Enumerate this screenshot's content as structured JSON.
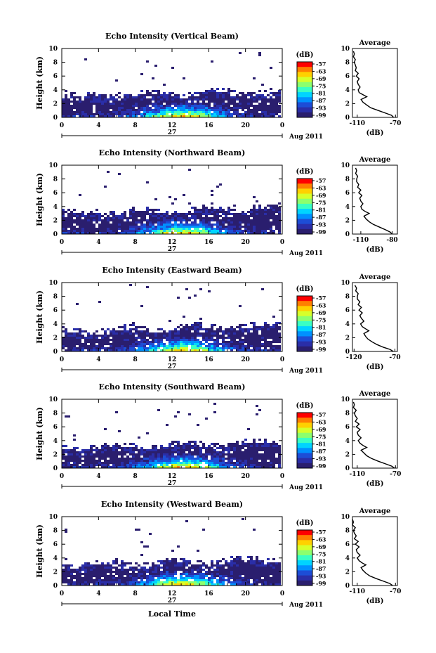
{
  "page": {
    "date_day": "27",
    "date_label": "Aug 2011",
    "x_title": "Local Time"
  },
  "colorbar": {
    "unit": "(dB)",
    "ticks": [
      "-57",
      "-63",
      "-69",
      "-75",
      "-81",
      "-87",
      "-93",
      "-99"
    ],
    "colors": [
      "#ff0000",
      "#ff7f00",
      "#ffd100",
      "#d7ff2a",
      "#8cff6e",
      "#39ffc4",
      "#00d4ff",
      "#0091ff",
      "#1d4dd6",
      "#2a2ea8",
      "#2a1e6e"
    ]
  },
  "chart_data": [
    {
      "type": "heatmap",
      "title": "Echo Intensity (Vertical Beam)",
      "ylabel": "Height (km)",
      "xticks": [
        "0",
        "4",
        "8",
        "12",
        "16",
        "20",
        "0"
      ],
      "yticks": [
        "0",
        "2",
        "4",
        "6",
        "8",
        "10"
      ],
      "xlim": [
        0,
        24
      ],
      "ylim": [
        0,
        10
      ],
      "profile": {
        "title": "Average",
        "xlabel": "(dB)",
        "xticks": [
          "-110",
          "-70"
        ],
        "xlim": [
          -115,
          -68
        ],
        "heights": [
          0,
          0.3,
          0.6,
          1,
          1.4,
          1.8,
          2.2,
          2.6,
          3,
          3.3,
          3.6,
          4,
          4.4,
          4.8,
          5.2,
          5.6,
          6,
          6.4,
          6.8,
          7.2,
          7.6,
          8,
          8.4,
          8.8,
          9.2,
          9.6
        ],
        "values": [
          -72,
          -74,
          -80,
          -88,
          -96,
          -100,
          -104,
          -106,
          -100,
          -104,
          -108,
          -109,
          -107,
          -109,
          -110,
          -108,
          -111,
          -109,
          -112,
          -111,
          -112,
          -113,
          -112,
          -114,
          -113,
          -114
        ]
      }
    },
    {
      "type": "heatmap",
      "title": "Echo Intensity (Northward Beam)",
      "ylabel": "Height (km)",
      "xticks": [
        "0",
        "4",
        "8",
        "12",
        "16",
        "20",
        "0"
      ],
      "yticks": [
        "0",
        "2",
        "4",
        "6",
        "8",
        "10"
      ],
      "xlim": [
        0,
        24
      ],
      "ylim": [
        0,
        10
      ],
      "profile": {
        "title": "Average",
        "xlabel": "(dB)",
        "xticks": [
          "-110",
          "-80"
        ],
        "xlim": [
          -118,
          -75
        ],
        "heights": [
          0,
          0.3,
          0.6,
          1,
          1.4,
          1.8,
          2.2,
          2.6,
          3,
          3.3,
          3.6,
          4,
          4.4,
          4.8,
          5.2,
          5.6,
          6,
          6.4,
          6.8,
          7.2,
          7.6,
          8,
          8.4,
          8.8,
          9.2,
          9.6
        ],
        "values": [
          -80,
          -82,
          -86,
          -92,
          -98,
          -102,
          -105,
          -107,
          -102,
          -106,
          -109,
          -110,
          -108,
          -110,
          -111,
          -109,
          -112,
          -110,
          -113,
          -112,
          -114,
          -114,
          -113,
          -115,
          -114,
          -115
        ]
      }
    },
    {
      "type": "heatmap",
      "title": "Echo Intensity (Eastward Beam)",
      "ylabel": "Height (km)",
      "xticks": [
        "0",
        "4",
        "8",
        "12",
        "16",
        "20",
        "0"
      ],
      "yticks": [
        "0",
        "2",
        "4",
        "6",
        "8",
        "10"
      ],
      "xlim": [
        0,
        24
      ],
      "ylim": [
        0,
        10
      ],
      "profile": {
        "title": "Average",
        "xlabel": "(dB)",
        "xticks": [
          "-120",
          "-70"
        ],
        "xlim": [
          -122,
          -67
        ],
        "heights": [
          0,
          0.3,
          0.6,
          1,
          1.4,
          1.8,
          2.2,
          2.6,
          3,
          3.3,
          3.6,
          4,
          4.4,
          4.8,
          5.2,
          5.6,
          6,
          6.4,
          6.8,
          7.2,
          7.6,
          8,
          8.4,
          8.8,
          9.2,
          9.6
        ],
        "values": [
          -72,
          -76,
          -84,
          -92,
          -98,
          -103,
          -106,
          -108,
          -102,
          -106,
          -110,
          -112,
          -108,
          -111,
          -113,
          -110,
          -114,
          -111,
          -115,
          -113,
          -116,
          -116,
          -115,
          -118,
          -117,
          -119
        ]
      }
    },
    {
      "type": "heatmap",
      "title": "Echo Intensity (Southward Beam)",
      "ylabel": "Height (km)",
      "xticks": [
        "0",
        "4",
        "8",
        "12",
        "16",
        "20",
        "0"
      ],
      "yticks": [
        "0",
        "2",
        "4",
        "6",
        "8",
        "10"
      ],
      "xlim": [
        0,
        24
      ],
      "ylim": [
        0,
        10
      ],
      "profile": {
        "title": "Average",
        "xlabel": "(dB)",
        "xticks": [
          "-110",
          "-70"
        ],
        "xlim": [
          -115,
          -68
        ],
        "heights": [
          0,
          0.3,
          0.6,
          1,
          1.4,
          1.8,
          2.2,
          2.6,
          3,
          3.3,
          3.6,
          4,
          4.4,
          4.8,
          5.2,
          5.6,
          6,
          6.4,
          6.8,
          7.2,
          7.6,
          8,
          8.4,
          8.8,
          9.2,
          9.6
        ],
        "values": [
          -71,
          -74,
          -80,
          -88,
          -95,
          -100,
          -103,
          -106,
          -100,
          -104,
          -107,
          -109,
          -106,
          -109,
          -110,
          -107,
          -111,
          -108,
          -112,
          -110,
          -112,
          -113,
          -111,
          -114,
          -113,
          -114
        ]
      }
    },
    {
      "type": "heatmap",
      "title": "Echo Intensity (Westward Beam)",
      "ylabel": "Height (km)",
      "xticks": [
        "0",
        "4",
        "8",
        "12",
        "16",
        "20",
        "0"
      ],
      "yticks": [
        "0",
        "2",
        "4",
        "6",
        "8",
        "10"
      ],
      "xlim": [
        0,
        24
      ],
      "ylim": [
        0,
        10
      ],
      "profile": {
        "title": "Average",
        "xlabel": "(dB)",
        "xticks": [
          "-110",
          "-70"
        ],
        "xlim": [
          -115,
          -68
        ],
        "heights": [
          0,
          0.3,
          0.6,
          1,
          1.4,
          1.8,
          2.2,
          2.6,
          3,
          3.3,
          3.6,
          4,
          4.4,
          4.8,
          5.2,
          5.6,
          6,
          6.4,
          6.8,
          7.2,
          7.6,
          8,
          8.4,
          8.8,
          9.2,
          9.6
        ],
        "values": [
          -73,
          -76,
          -82,
          -90,
          -97,
          -101,
          -104,
          -106,
          -101,
          -105,
          -108,
          -110,
          -107,
          -110,
          -111,
          -108,
          -112,
          -109,
          -113,
          -111,
          -113,
          -114,
          -112,
          -115,
          -114,
          -115
        ]
      }
    }
  ]
}
